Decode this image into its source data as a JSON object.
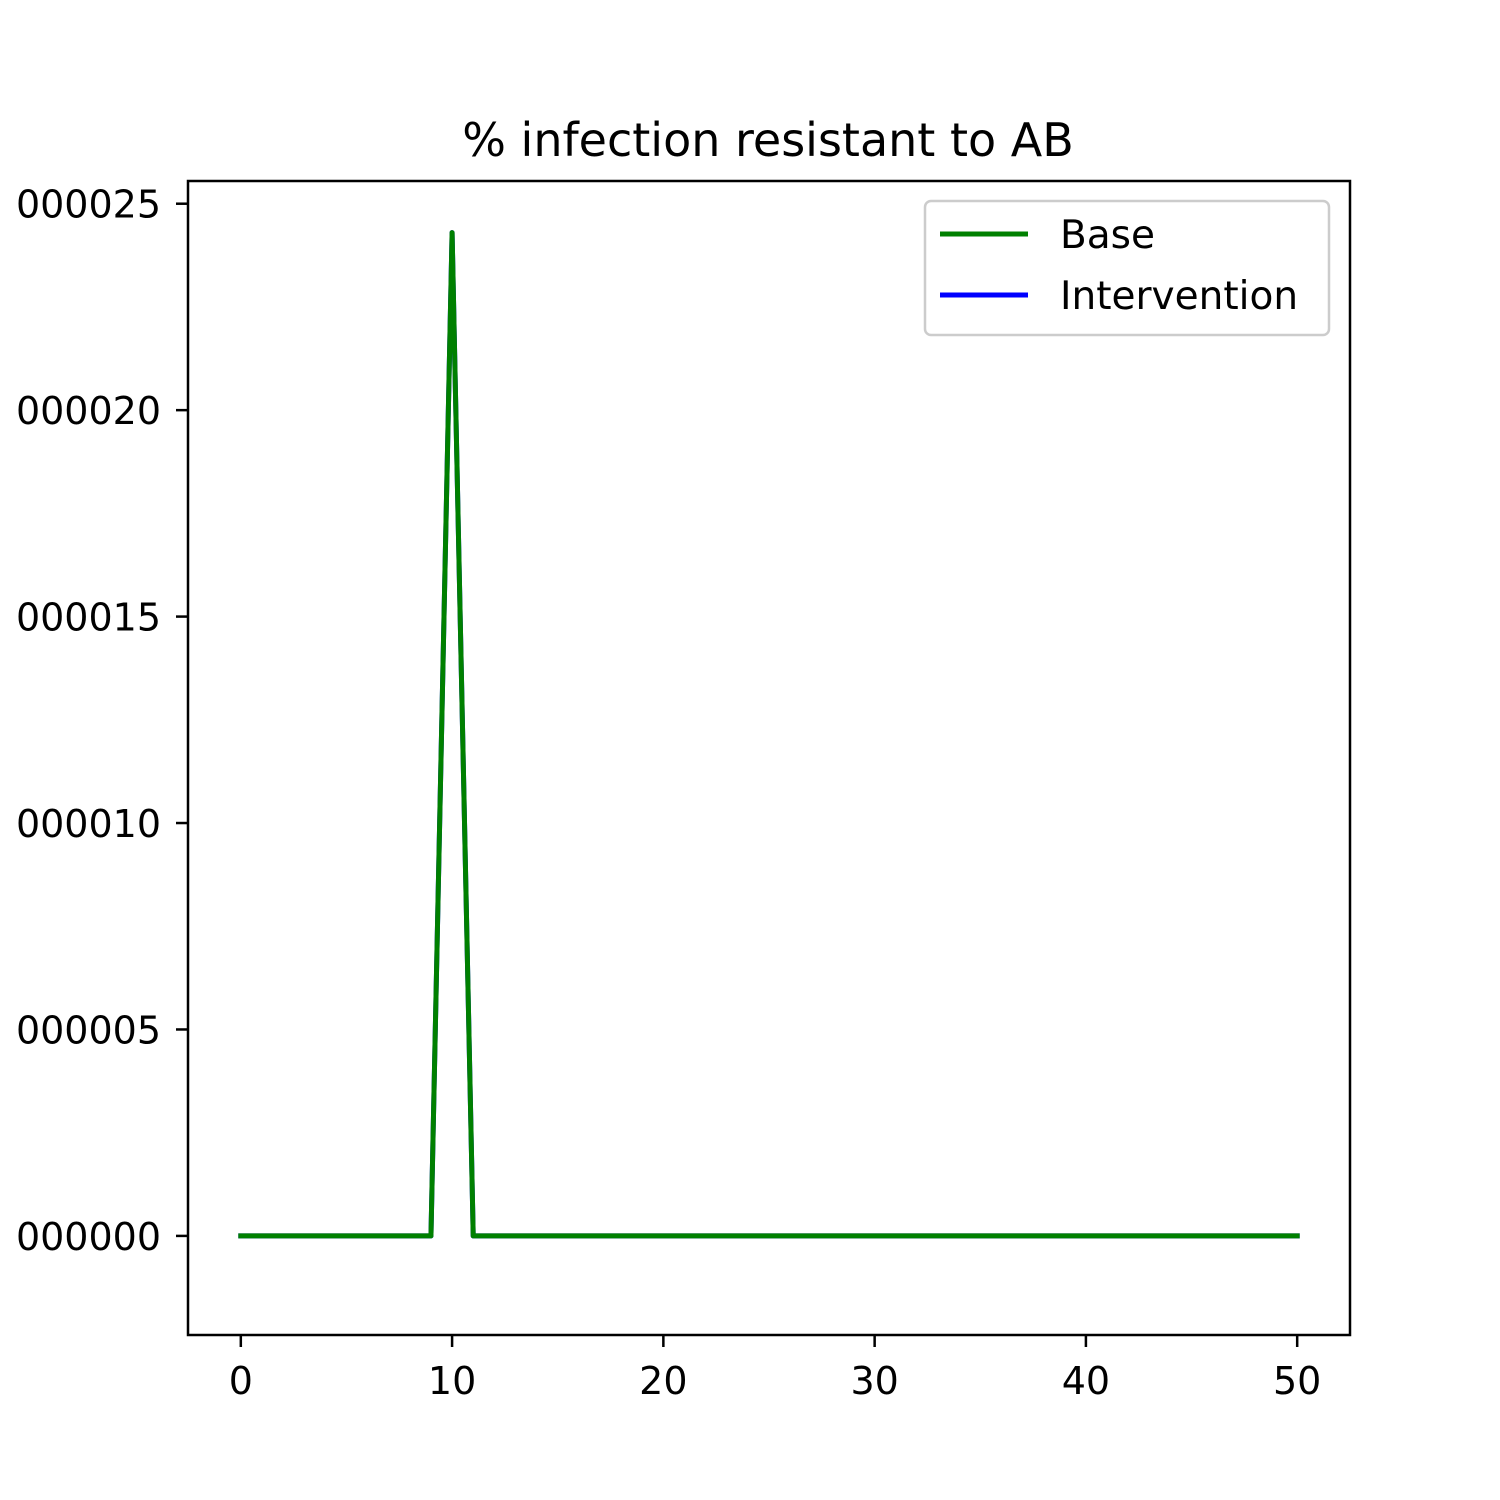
{
  "chart_data": {
    "type": "line",
    "title": "% infection resistant to AB",
    "xlabel": "",
    "ylabel": "",
    "xlim": [
      -2.5,
      52.5
    ],
    "ylim": [
      -2.4e-06,
      2.555e-05
    ],
    "x_ticks": [
      0,
      10,
      20,
      30,
      40,
      50
    ],
    "x_tick_labels": [
      "0",
      "10",
      "20",
      "30",
      "40",
      "50"
    ],
    "y_ticks": [
      0,
      5e-06,
      1e-05,
      1.5e-05,
      2e-05,
      2.5e-05
    ],
    "y_tick_labels": [
      "000000",
      "000005",
      "000010",
      "000015",
      "000020",
      "000025"
    ],
    "grid": false,
    "legend_position": "upper right",
    "series": [
      {
        "name": "Intervention",
        "color": "#0000ff",
        "x": [
          0,
          1,
          2,
          3,
          4,
          5,
          6,
          7,
          8,
          9,
          10,
          11,
          12,
          13,
          14,
          15,
          16,
          17,
          18,
          19,
          20,
          21,
          22,
          23,
          24,
          25,
          26,
          27,
          28,
          29,
          30,
          31,
          32,
          33,
          34,
          35,
          36,
          37,
          38,
          39,
          40,
          41,
          42,
          43,
          44,
          45,
          46,
          47,
          48,
          49,
          50
        ],
        "y": [
          0,
          0,
          0,
          0,
          0,
          0,
          0,
          0,
          0,
          0,
          2.43e-05,
          0,
          0,
          0,
          0,
          0,
          0,
          0,
          0,
          0,
          0,
          0,
          0,
          0,
          0,
          0,
          0,
          0,
          0,
          0,
          0,
          0,
          0,
          0,
          0,
          0,
          0,
          0,
          0,
          0,
          0,
          0,
          0,
          0,
          0,
          0,
          0,
          0,
          0,
          0,
          0
        ]
      },
      {
        "name": "Base",
        "color": "#008000",
        "x": [
          0,
          1,
          2,
          3,
          4,
          5,
          6,
          7,
          8,
          9,
          10,
          11,
          12,
          13,
          14,
          15,
          16,
          17,
          18,
          19,
          20,
          21,
          22,
          23,
          24,
          25,
          26,
          27,
          28,
          29,
          30,
          31,
          32,
          33,
          34,
          35,
          36,
          37,
          38,
          39,
          40,
          41,
          42,
          43,
          44,
          45,
          46,
          47,
          48,
          49,
          50
        ],
        "y": [
          0,
          0,
          0,
          0,
          0,
          0,
          0,
          0,
          0,
          0,
          2.43e-05,
          0,
          0,
          0,
          0,
          0,
          0,
          0,
          0,
          0,
          0,
          0,
          0,
          0,
          0,
          0,
          0,
          0,
          0,
          0,
          0,
          0,
          0,
          0,
          0,
          0,
          0,
          0,
          0,
          0,
          0,
          0,
          0,
          0,
          0,
          0,
          0,
          0,
          0,
          0,
          0
        ]
      }
    ],
    "legend": [
      {
        "name": "Base",
        "color": "#008000"
      },
      {
        "name": "Intervention",
        "color": "#0000ff"
      }
    ]
  }
}
